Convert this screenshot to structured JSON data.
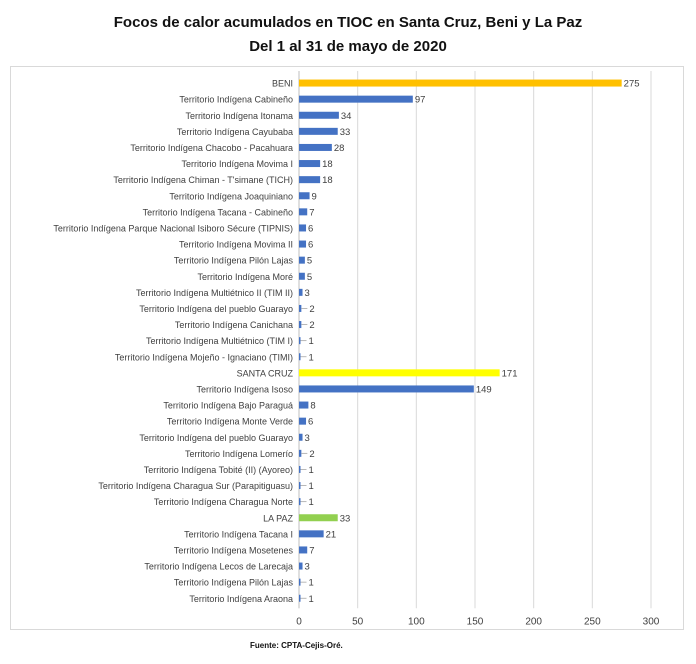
{
  "title_line1": "Focos de calor acumulados en TIOC en Santa Cruz, Beni y La Paz",
  "title_line2": "Del 1 al 31 de mayo de 2020",
  "source": "Fuente: CPTA-Cejis-Oré.",
  "chart_data": {
    "type": "bar",
    "orientation": "horizontal",
    "title": "Focos de calor acumulados en TIOC en Santa Cruz, Beni y La Paz — Del 1 al 31 de mayo de 2020",
    "xlim": [
      0,
      300
    ],
    "xticks": [
      0,
      50,
      100,
      150,
      200,
      250,
      300
    ],
    "grid": true,
    "categories": [
      "BENI",
      "Territorio Indígena Cabineño",
      "Territorio Indígena Itonama",
      "Territorio Indígena Cayubaba",
      "Territorio Indígena Chacobo - Pacahuara",
      "Territorio Indígena Movima I",
      "Territorio Indígena Chiman - T'simane (TICH)",
      "Territorio Indígena Joaquiniano",
      "Territorio Indígena Tacana - Cabineño",
      "Territorio Indígena Parque Nacional Isiboro Sécure (TIPNIS)",
      "Territorio Indígena Movima II",
      "Territorio Indígena Pilón Lajas",
      "Territorio Indígena Moré",
      "Territorio Indígena Multiétnico II (TIM II)",
      "Territorio Indígena del pueblo Guarayo",
      "Territorio Indígena Canichana",
      "Territorio Indígena Multiétnico (TIM I)",
      "Territorio Indígena Mojeño - Ignaciano (TIMI)",
      "SANTA CRUZ",
      "Territorio Indígena Isoso",
      "Territorio Indígena Bajo Paraguá",
      "Territorio Indígena Monte Verde",
      "Territorio Indígena del pueblo Guarayo",
      "Territorio Indígena Lomerío",
      "Territorio Indígena Tobité (II) (Ayoreo)",
      "Territorio Indígena Charagua Sur (Parapitiguasu)",
      "Territorio Indígena Charagua Norte",
      "LA PAZ",
      "Territorio Indígena Tacana I",
      "Territorio Indígena Mosetenes",
      "Territorio Indígena Lecos de Larecaja",
      "Territorio Indígena Pilón Lajas",
      "Territorio Indígena Araona"
    ],
    "values": [
      275,
      97,
      34,
      33,
      28,
      18,
      18,
      9,
      7,
      6,
      6,
      5,
      5,
      3,
      2,
      2,
      1,
      1,
      171,
      149,
      8,
      6,
      3,
      2,
      1,
      1,
      1,
      33,
      21,
      7,
      3,
      1,
      1
    ],
    "group_totals": {
      "BENI": "#FFC000",
      "SANTA CRUZ": "#FFFF00",
      "LA PAZ": "#92D050"
    },
    "default_bar_color": "#4472C4"
  }
}
